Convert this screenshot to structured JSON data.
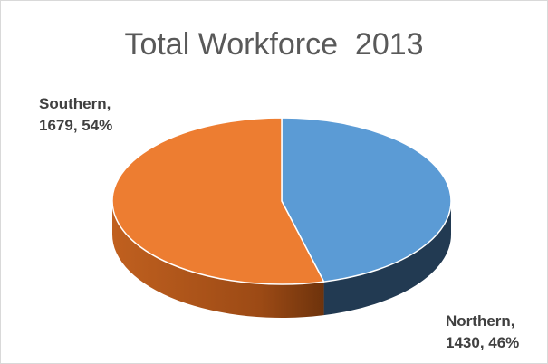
{
  "chart_data": {
    "type": "pie",
    "title": "Total Workforce  2013",
    "slices": [
      {
        "label": "Northern",
        "value": 1430,
        "percent": "46%",
        "color": "#5b9bd5",
        "side_color": "#223a52"
      },
      {
        "label": "Southern",
        "value": 1679,
        "percent": "54%",
        "color": "#ed7d31",
        "side_color": "#b8561c"
      }
    ],
    "data_labels": {
      "northern_line1": "Northern,",
      "northern_line2": "1430, 46%",
      "southern_line1": "Southern,",
      "southern_line2": "1679, 54%"
    },
    "style": "3d",
    "legend": "none"
  }
}
